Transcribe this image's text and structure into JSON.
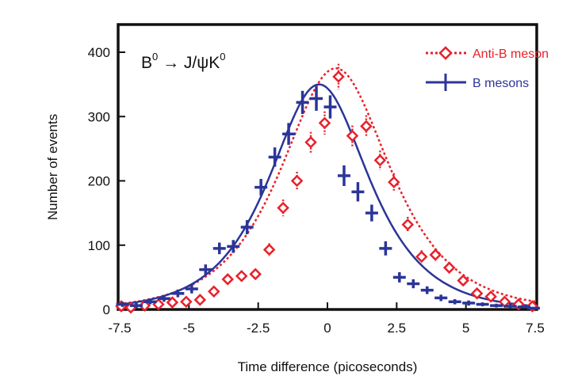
{
  "chart_data": {
    "type": "scatter",
    "title": "",
    "annotation": {
      "parts": [
        "B",
        "0",
        " → J/ψK",
        "0"
      ]
    },
    "xlabel": "Time difference (picoseconds)",
    "ylabel": "Number of events",
    "xlim": [
      -7.5,
      7.5
    ],
    "ylim": [
      0,
      440
    ],
    "x_ticks": [
      -7.5,
      -5,
      -2.5,
      0,
      2.5,
      5,
      7.5
    ],
    "x_tick_labels": [
      "-7.5",
      "-5",
      "-2.5",
      "0",
      "2.5",
      "5",
      "7.5"
    ],
    "y_ticks": [
      0,
      100,
      200,
      300,
      400
    ],
    "y_tick_labels": [
      "0",
      "100",
      "200",
      "300",
      "400"
    ],
    "grid": false,
    "legend_position": "top-right",
    "series": [
      {
        "name": "Anti-B meson",
        "color": "#e8212b",
        "marker": "open-diamond",
        "line": "dotted",
        "x": [
          -7.6,
          -7.1,
          -6.6,
          -6.1,
          -5.6,
          -5.1,
          -4.6,
          -4.1,
          -3.6,
          -3.1,
          -2.6,
          -2.1,
          -1.6,
          -1.1,
          -0.6,
          -0.1,
          0.4,
          0.9,
          1.4,
          1.9,
          2.4,
          2.9,
          3.4,
          3.9,
          4.4,
          4.9,
          5.4,
          5.9,
          6.4,
          6.9,
          7.4
        ],
        "values": [
          5,
          3,
          6,
          8,
          11,
          12,
          15,
          28,
          47,
          52,
          55,
          93,
          158,
          200,
          260,
          290,
          362,
          270,
          285,
          232,
          198,
          132,
          82,
          85,
          65,
          45,
          25,
          20,
          12,
          8,
          5
        ],
        "errors": [
          3,
          3,
          3,
          3,
          4,
          4,
          5,
          6,
          8,
          8,
          8,
          10,
          13,
          14,
          16,
          18,
          20,
          16,
          17,
          15,
          14,
          12,
          10,
          10,
          9,
          7,
          6,
          5,
          4,
          3,
          3
        ],
        "fit_peak_x": 0.3,
        "fit_peak_y": 375
      },
      {
        "name": "B mesons",
        "color": "#2b3598",
        "marker": "plus",
        "line": "solid",
        "x": [
          -7.4,
          -6.9,
          -6.4,
          -5.9,
          -5.4,
          -4.9,
          -4.4,
          -3.9,
          -3.4,
          -2.9,
          -2.4,
          -1.9,
          -1.4,
          -0.9,
          -0.4,
          0.1,
          0.6,
          1.1,
          1.6,
          2.1,
          2.6,
          3.1,
          3.6,
          4.1,
          4.6,
          5.1,
          5.6,
          6.1,
          6.6,
          7.1,
          7.6
        ],
        "values": [
          8,
          6,
          12,
          17,
          25,
          32,
          62,
          95,
          98,
          128,
          190,
          237,
          273,
          322,
          328,
          315,
          208,
          183,
          150,
          95,
          50,
          40,
          30,
          18,
          12,
          10,
          8,
          6,
          5,
          4,
          2
        ],
        "errors": [
          4,
          4,
          4,
          5,
          6,
          7,
          8,
          9,
          10,
          11,
          13,
          15,
          17,
          18,
          19,
          18,
          16,
          15,
          13,
          11,
          8,
          7,
          6,
          5,
          4,
          4,
          3,
          3,
          3,
          2,
          2
        ],
        "fit_peak_x": -0.3,
        "fit_peak_y": 350
      }
    ]
  }
}
